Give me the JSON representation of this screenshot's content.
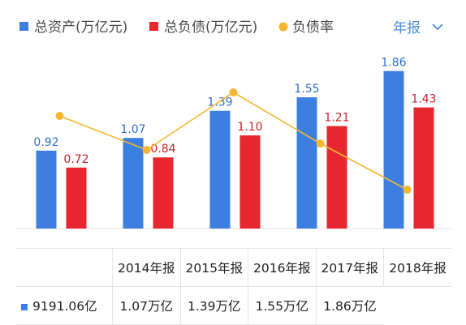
{
  "period_selector": {
    "label": "年报",
    "icon": "chevron-down-icon"
  },
  "colors": {
    "total_assets": "#3d7fe0",
    "total_liabilities": "#e8262f",
    "debt_ratio": "#f5b731"
  },
  "chart_data": {
    "type": "bar",
    "categories": [
      "2014年报",
      "2015年报",
      "2016年报",
      "2017年报",
      "2018年报"
    ],
    "series": [
      {
        "name": "总资产(万亿元)",
        "type": "bar",
        "values": [
          0.92,
          1.07,
          1.39,
          1.55,
          1.86
        ],
        "labels": [
          "0.92",
          "1.07",
          "1.39",
          "1.55",
          "1.86"
        ]
      },
      {
        "name": "总负债(万亿元)",
        "type": "bar",
        "values": [
          0.72,
          0.84,
          1.1,
          1.21,
          1.43
        ],
        "labels": [
          "0.72",
          "0.84",
          "1.10",
          "1.21",
          "1.43"
        ]
      },
      {
        "name": "负债率",
        "type": "line",
        "values": [
          0.78,
          0.78,
          0.79,
          0.78,
          0.77
        ]
      }
    ],
    "ylim": [
      0,
      2
    ],
    "legend_position": "top-left"
  },
  "table": {
    "headers": [
      "",
      "2014年报",
      "2015年报",
      "2016年报",
      "2017年报",
      "2018年报"
    ],
    "rows": [
      {
        "cells": [
          "9191.06亿",
          "1.07万亿",
          "1.39万亿",
          "1.55万亿",
          "1.86万亿"
        ]
      }
    ]
  }
}
